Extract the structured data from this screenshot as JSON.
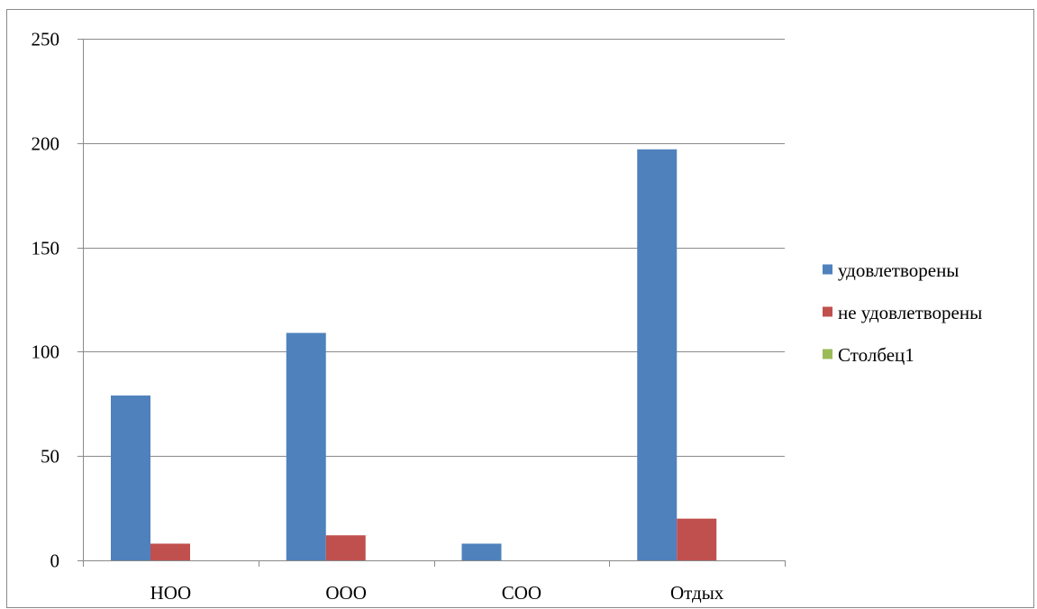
{
  "chart_data": {
    "type": "bar",
    "title": "",
    "xlabel": "",
    "ylabel": "",
    "categories": [
      "НОО",
      "ООО",
      "СОО",
      "Отдых"
    ],
    "series": [
      {
        "name": "удовлетворены",
        "color": "#4F81BD",
        "values": [
          79,
          109,
          8,
          197
        ]
      },
      {
        "name": "не удовлетворены",
        "color": "#C0504D",
        "values": [
          8,
          12,
          0,
          20
        ]
      },
      {
        "name": "Столбец1",
        "color": "#9BBB59",
        "values": [
          0,
          0,
          0,
          0
        ]
      }
    ],
    "ylim": [
      0,
      250
    ],
    "yticks": [
      0,
      50,
      100,
      150,
      200,
      250
    ],
    "grid": true,
    "legend_position": "right"
  }
}
